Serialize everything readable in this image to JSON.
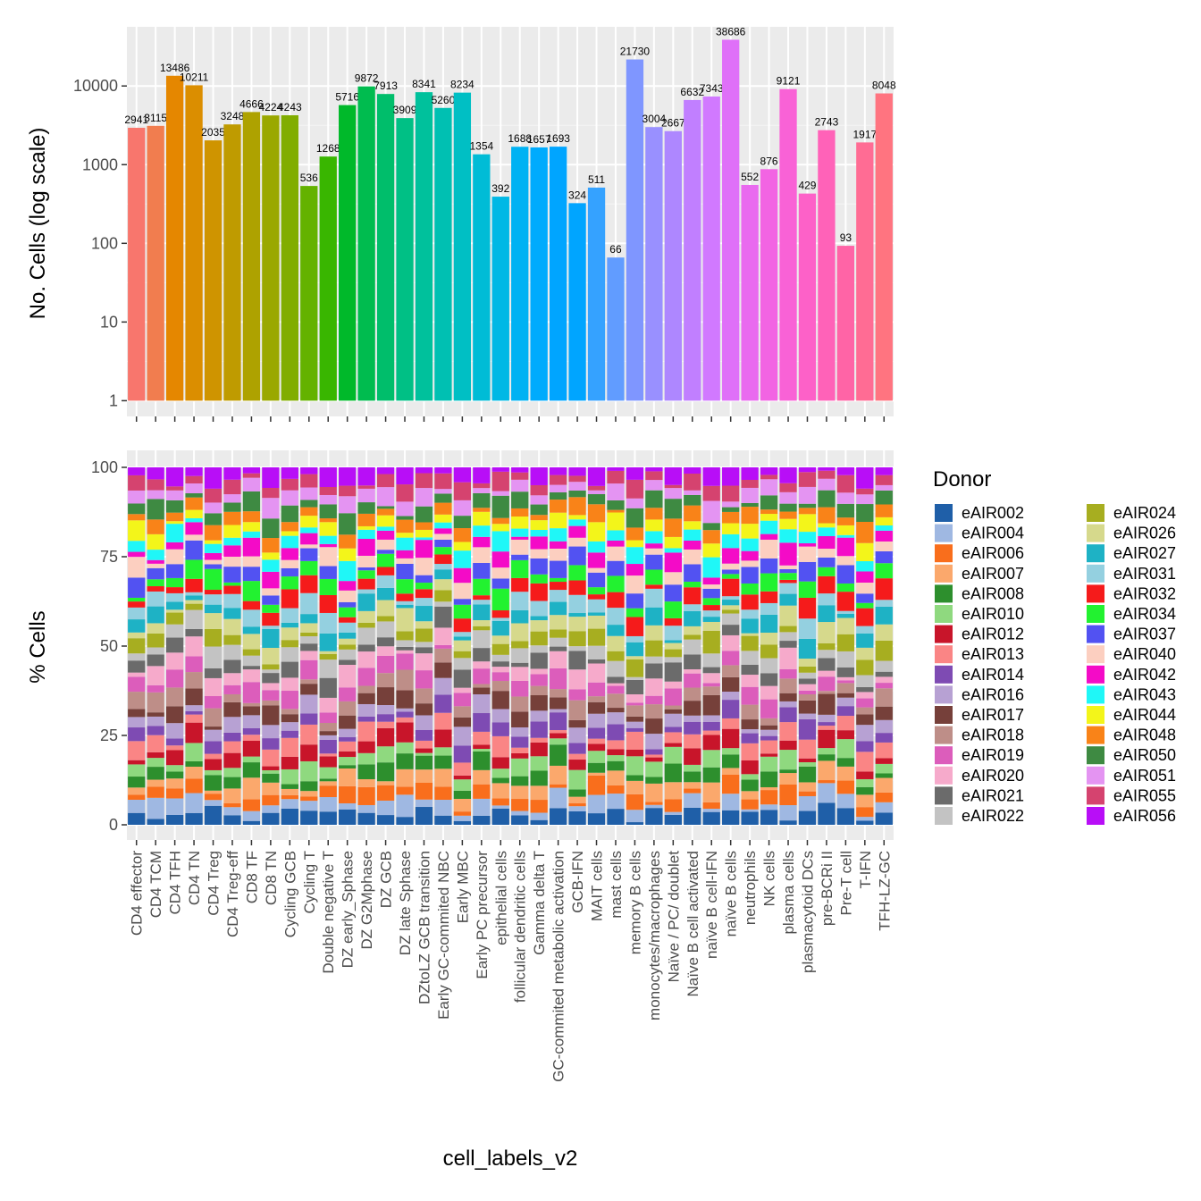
{
  "chart_data": [
    {
      "type": "bar",
      "scale": "log",
      "ylabel": "No. Cells (log scale)",
      "ylim": [
        1,
        40000
      ],
      "yticks": [
        1,
        10,
        100,
        1000,
        10000
      ],
      "ytick_labels": [
        "1",
        "10",
        "100",
        "1000",
        "10000"
      ],
      "grid": true,
      "categories": [
        "CD4 effector",
        "CD4 TCM",
        "CD4 TFH",
        "CD4 TN",
        "CD4 Treg",
        "CD4 Treg-eff",
        "CD8 TF",
        "CD8 TN",
        "Cycling GCB",
        "Cycling T",
        "Double negative T",
        "DZ early_Sphase",
        "DZ G2Mphase",
        "DZ GCB",
        "DZ late Sphase",
        "DZtoLZ GCB transition",
        "Early GC-commited NBC",
        "Early MBC",
        "Early PC precursor",
        "epithelial cells",
        "follicular dendritic cells",
        "Gamma delta T",
        "GC-commited metabolic activation",
        "GCB-IFN",
        "MAIT cells",
        "mast cells",
        "memory B cells",
        "monocytes/macrophages",
        "Naïve / PC/ doublet",
        "Naïve B cell activated",
        "naïve B cell-IFN",
        "naïve B cells",
        "neutrophils",
        "NK cells",
        "plasma cells",
        "plasmacytoid DCs",
        "pre-BCRi II",
        "Pre-T cell",
        "T-IFN",
        "TFH-LZ-GC"
      ],
      "values": [
        2941,
        3115,
        13486,
        10211,
        2035,
        3248,
        4666,
        4224,
        4243,
        536,
        1268,
        5716,
        9872,
        7913,
        3909,
        8341,
        5260,
        8234,
        1354,
        392,
        1688,
        1657,
        1693,
        324,
        511,
        66,
        21730,
        3004,
        2667,
        6632,
        7343,
        38686,
        552,
        876,
        9121,
        429,
        2743,
        93,
        1917,
        8048
      ],
      "data_labels": [
        "2941",
        "3115",
        "13486",
        "10211",
        "2035",
        "3248",
        "4666",
        "4224",
        "4243",
        "536",
        "1268",
        "5716",
        "9872",
        "7913",
        "3909",
        "8341",
        "5260",
        "8234",
        "1354",
        "392",
        "1688",
        "1657",
        "1693",
        "324",
        "511",
        "66",
        "21730",
        "3004",
        "2667",
        "6632",
        "7343",
        "38686",
        "552",
        "876",
        "9121",
        "429",
        "2743",
        "93",
        "1917",
        "8048"
      ],
      "bar_colors": [
        "#F8766D",
        "#F17D4F",
        "#E58700",
        "#DB8E00",
        "#CF9400",
        "#BF9B00",
        "#AEA200",
        "#9AA800",
        "#81AD00",
        "#64B200",
        "#39B600",
        "#00B92A",
        "#00BC4F",
        "#00BE6B",
        "#00C085",
        "#00C19C",
        "#00C0B2",
        "#00BFC4",
        "#00BCD6",
        "#00B8E5",
        "#00B2F3",
        "#00ABFD",
        "#00A5FF",
        "#00A5FF",
        "#35A2FF",
        "#619CFF",
        "#7F96FF",
        "#9990FF",
        "#AE87FF",
        "#C17FFF",
        "#D179FF",
        "#DF70F8",
        "#E96AEF",
        "#F264E3",
        "#F962D6",
        "#FD61C8",
        "#FF62B8",
        "#FF64A6",
        "#FF6C94",
        "#FF7480"
      ]
    },
    {
      "type": "bar",
      "stacked": true,
      "ylabel": "% Cells",
      "xlabel": "cell_labels_v2",
      "ylim": [
        0,
        100
      ],
      "yticks": [
        0,
        25,
        50,
        75,
        100
      ],
      "ytick_labels": [
        "0",
        "25",
        "50",
        "75",
        "100"
      ],
      "grid": true,
      "legend_title": "Donor",
      "legend_position": "right",
      "series": [
        {
          "name": "eAIR002",
          "color": "#1F5FA8"
        },
        {
          "name": "eAIR004",
          "color": "#9FB8E2"
        },
        {
          "name": "eAIR006",
          "color": "#F96E1C"
        },
        {
          "name": "eAIR007",
          "color": "#FBA86C"
        },
        {
          "name": "eAIR008",
          "color": "#2D8F2D"
        },
        {
          "name": "eAIR010",
          "color": "#8FD97F"
        },
        {
          "name": "eAIR012",
          "color": "#C8152A"
        },
        {
          "name": "eAIR013",
          "color": "#FA8585"
        },
        {
          "name": "eAIR014",
          "color": "#7E4BB3"
        },
        {
          "name": "eAIR016",
          "color": "#B7A1D3"
        },
        {
          "name": "eAIR017",
          "color": "#76403A"
        },
        {
          "name": "eAIR018",
          "color": "#BE8E88"
        },
        {
          "name": "eAIR019",
          "color": "#DC5DBB"
        },
        {
          "name": "eAIR020",
          "color": "#F6AACB"
        },
        {
          "name": "eAIR021",
          "color": "#6B6B6B"
        },
        {
          "name": "eAIR022",
          "color": "#C3C3C3"
        },
        {
          "name": "eAIR024",
          "color": "#A7AE20"
        },
        {
          "name": "eAIR026",
          "color": "#D6D98C"
        },
        {
          "name": "eAIR027",
          "color": "#1EB2C5"
        },
        {
          "name": "eAIR031",
          "color": "#94D0E0"
        },
        {
          "name": "eAIR032",
          "color": "#F51B1B"
        },
        {
          "name": "eAIR034",
          "color": "#22F230"
        },
        {
          "name": "eAIR037",
          "color": "#5252F2"
        },
        {
          "name": "eAIR040",
          "color": "#FCCFC0"
        },
        {
          "name": "eAIR042",
          "color": "#F40BC7"
        },
        {
          "name": "eAIR043",
          "color": "#1FF7F7"
        },
        {
          "name": "eAIR044",
          "color": "#F3F51A"
        },
        {
          "name": "eAIR048",
          "color": "#F98318"
        },
        {
          "name": "eAIR050",
          "color": "#3E8A42"
        },
        {
          "name": "eAIR051",
          "color": "#E494F2"
        },
        {
          "name": "eAIR055",
          "color": "#D5436F"
        },
        {
          "name": "eAIR056",
          "color": "#B80EF7"
        }
      ]
    }
  ]
}
